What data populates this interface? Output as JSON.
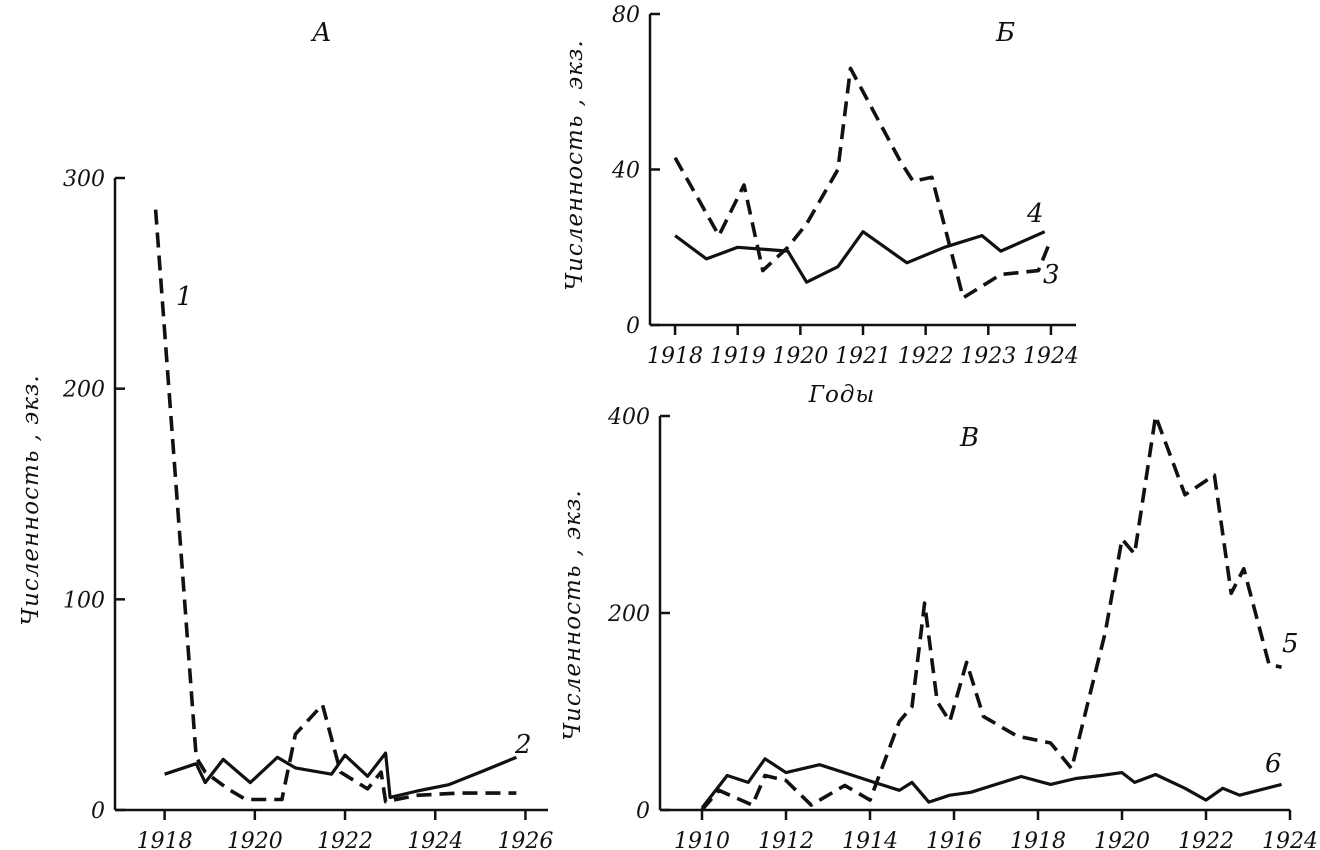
{
  "chart_data": [
    {
      "id": "A",
      "type": "line",
      "title": "А",
      "ylabel": "Численность , экз.",
      "xlabel": "",
      "xlim": [
        1916.9,
        1926.5
      ],
      "ylim": [
        0,
        300
      ],
      "xticks": [
        1918,
        1920,
        1922,
        1924,
        1926
      ],
      "yticks": [
        0,
        100,
        200,
        300
      ],
      "series": [
        {
          "name": "1",
          "style": "dashed",
          "x": [
            1917.8,
            1918.7,
            1918.9,
            1919.4,
            1919.8,
            1920.4,
            1920.6,
            1920.9,
            1921.5,
            1921.9,
            1922.5,
            1922.8,
            1922.9,
            1923.6,
            1924.5,
            1925.0,
            1925.8
          ],
          "y": [
            285,
            25,
            18,
            10,
            5,
            5,
            5,
            36,
            50,
            18,
            10,
            18,
            4,
            7,
            8,
            8,
            8
          ]
        },
        {
          "name": "2",
          "style": "solid",
          "x": [
            1918.0,
            1918.7,
            1918.9,
            1919.3,
            1919.9,
            1920.1,
            1920.5,
            1920.9,
            1921.7,
            1922.0,
            1922.5,
            1922.9,
            1923.0,
            1923.6,
            1924.3,
            1925.0,
            1925.8
          ],
          "y": [
            17,
            22,
            13,
            24,
            13,
            17,
            25,
            20,
            17,
            26,
            16,
            27,
            6,
            9,
            12,
            18,
            25
          ]
        }
      ]
    },
    {
      "id": "B",
      "type": "line",
      "title": "Б",
      "ylabel": "Численность , экз.",
      "xlabel": "Годы",
      "xlim": [
        1917.6,
        1924.4
      ],
      "ylim": [
        0,
        80
      ],
      "xticks": [
        1918,
        1919,
        1920,
        1921,
        1922,
        1923,
        1924
      ],
      "yticks": [
        0,
        40,
        80
      ],
      "series": [
        {
          "name": "3",
          "style": "dashed",
          "x": [
            1918.0,
            1918.7,
            1919.1,
            1919.4,
            1919.8,
            1920.1,
            1920.6,
            1920.8,
            1921.1,
            1921.6,
            1921.8,
            1922.1,
            1922.6,
            1923.2,
            1923.8,
            1924.0
          ],
          "y": [
            43,
            23,
            36,
            14,
            20,
            26,
            40,
            66,
            57,
            42,
            37,
            38,
            7,
            13,
            14,
            22
          ]
        },
        {
          "name": "4",
          "style": "solid",
          "x": [
            1918.0,
            1918.5,
            1919.0,
            1919.8,
            1920.1,
            1920.6,
            1921.0,
            1921.7,
            1922.3,
            1922.9,
            1923.2,
            1923.9
          ],
          "y": [
            23,
            17,
            20,
            19,
            11,
            15,
            24,
            16,
            20,
            23,
            19,
            24
          ]
        }
      ]
    },
    {
      "id": "C",
      "type": "line",
      "title": "В",
      "ylabel": "Численность , экз.",
      "xlabel": "",
      "xlim": [
        1909.0,
        1924.0
      ],
      "ylim": [
        0,
        400
      ],
      "xticks": [
        1910,
        1912,
        1914,
        1916,
        1918,
        1920,
        1922,
        1924
      ],
      "yticks": [
        0,
        200,
        400
      ],
      "series": [
        {
          "name": "5",
          "style": "dashed",
          "x": [
            1910.0,
            1910.4,
            1911.2,
            1911.5,
            1912.0,
            1912.6,
            1913.4,
            1914.0,
            1914.7,
            1915.0,
            1915.3,
            1915.6,
            1915.9,
            1916.3,
            1916.7,
            1917.5,
            1918.3,
            1918.8,
            1919.6,
            1920.0,
            1920.3,
            1920.8,
            1921.5,
            1922.2,
            1922.6,
            1922.9,
            1923.5,
            1923.8
          ],
          "y": [
            0,
            20,
            5,
            35,
            30,
            5,
            25,
            10,
            90,
            105,
            210,
            110,
            90,
            150,
            95,
            75,
            68,
            42,
            180,
            275,
            260,
            400,
            320,
            340,
            220,
            245,
            148,
            145
          ]
        },
        {
          "name": "6",
          "style": "solid",
          "x": [
            1910.0,
            1910.6,
            1911.1,
            1911.5,
            1912.0,
            1912.8,
            1913.6,
            1914.1,
            1914.7,
            1915.0,
            1915.4,
            1915.9,
            1916.4,
            1917.0,
            1917.6,
            1918.3,
            1918.9,
            1919.5,
            1920.0,
            1920.3,
            1920.8,
            1921.5,
            1922.0,
            1922.4,
            1922.8,
            1923.8
          ],
          "y": [
            2,
            35,
            28,
            52,
            38,
            46,
            35,
            28,
            20,
            28,
            8,
            15,
            18,
            26,
            34,
            26,
            32,
            35,
            38,
            28,
            36,
            22,
            10,
            22,
            15,
            26
          ]
        }
      ]
    }
  ]
}
